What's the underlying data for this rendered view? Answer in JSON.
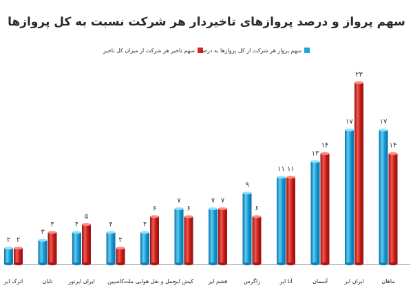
{
  "chart_data": {
    "type": "bar",
    "title": "سهم پرواز و درصد پروازهای تاخیردار هر شرکت نسبت به کل پروازها",
    "categories": [
      "ماهان",
      "ایران ایر",
      "آسمان",
      "آتا ایر",
      "زاگرس",
      "قشم ایر",
      "کیش ایر",
      "حمل و نقل هوایی ملت",
      "کاسپین",
      "ایران ایرتور",
      "تابان",
      "اترک ایر"
    ],
    "series": [
      {
        "name": "سهم پرواز هر شرکت از کل پروازها به درصد",
        "color": "#1aa7e0",
        "values": [
          17,
          17,
          13,
          11,
          9,
          7,
          7,
          4,
          4,
          4,
          3,
          2
        ],
        "labels": [
          "۱۷",
          "۱۷",
          "۱۳",
          "۱۱",
          "۹",
          "۷",
          "۷",
          "۴",
          "۴",
          "۴",
          "۳",
          "۲"
        ]
      },
      {
        "name": "سهم تاخیر هر شرکت از میزان کل تاخیر",
        "color": "#e0241f",
        "values": [
          14,
          23,
          14,
          11,
          6,
          7,
          6,
          6,
          2,
          5,
          4,
          2
        ],
        "labels": [
          "۱۴",
          "۲۳",
          "۱۴",
          "۱۱",
          "۶",
          "۷",
          "۶",
          "۶",
          "۲",
          "۵",
          "۴",
          "۲"
        ]
      }
    ],
    "ylim": [
      0,
      24
    ],
    "grid": false,
    "legend_position": "top-center"
  }
}
